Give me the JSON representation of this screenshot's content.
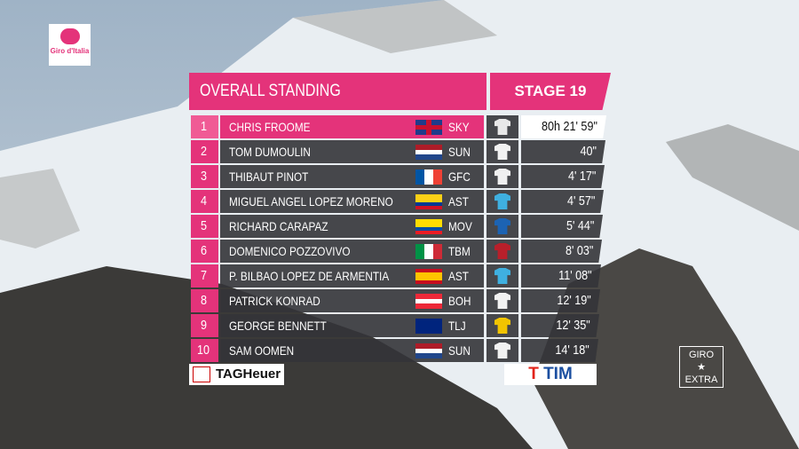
{
  "brand": {
    "logo": "Giro d'Italia",
    "sponsor_left": "TAGHeuer",
    "sponsor_right": "TIM",
    "channel_top": "GIRO",
    "channel_bottom": "EXTRA"
  },
  "header": {
    "title": "OVERALL STANDING",
    "stage": "STAGE 19"
  },
  "table": {
    "rows": [
      [
        "1",
        "CHRIS FROOME",
        "SKY",
        "80h 21' 59\""
      ],
      [
        "2",
        "TOM DUMOULIN",
        "SUN",
        "40\""
      ],
      [
        "3",
        "THIBAUT PINOT",
        "GFC",
        "4' 17\""
      ],
      [
        "4",
        "MIGUEL ANGEL LOPEZ MORENO",
        "AST",
        "4' 57\""
      ],
      [
        "5",
        "RICHARD CARAPAZ",
        "MOV",
        "5' 44\""
      ],
      [
        "6",
        "DOMENICO POZZOVIVO",
        "TBM",
        "8' 03\""
      ],
      [
        "7",
        "P. BILBAO LOPEZ DE ARMENTIA",
        "AST",
        "11' 08\""
      ],
      [
        "8",
        "PATRICK KONRAD",
        "BOH",
        "12' 19\""
      ],
      [
        "9",
        "GEORGE BENNETT",
        "TLJ",
        "12' 35\""
      ],
      [
        "10",
        "SAM OOMEN",
        "SUN",
        "14' 18\""
      ]
    ]
  }
}
